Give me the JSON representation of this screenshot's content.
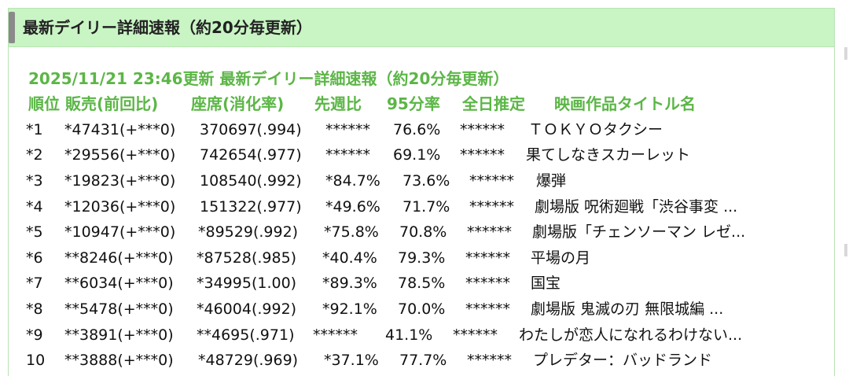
{
  "panel": {
    "title": "最新デイリー詳細速報（約20分毎更新）"
  },
  "report": {
    "title": "2025/11/21 23:46更新 最新デイリー詳細速報（約20分毎更新）"
  },
  "columns": {
    "rank_sales": "順位 販売(前回比)",
    "seats": "座席(消化率)",
    "last_week": "先週比",
    "pct95": "95分率",
    "full_day": "全日推定",
    "movie_title": "映画作品タイトル名"
  },
  "rows": [
    {
      "rank": "*1",
      "sales": "*47431(+***0)",
      "seats": "370697(.994)",
      "last_week": "******",
      "pct95": "76.6%",
      "full_day": "******",
      "title": "ＴＯＫＹＯタクシー"
    },
    {
      "rank": "*2",
      "sales": "*29556(+***0)",
      "seats": "742654(.977)",
      "last_week": "******",
      "pct95": "69.1%",
      "full_day": "******",
      "title": "果てしなきスカーレット"
    },
    {
      "rank": "*3",
      "sales": "*19823(+***0)",
      "seats": "108540(.992)",
      "last_week": "*84.7%",
      "pct95": "73.6%",
      "full_day": "******",
      "title": "爆弾"
    },
    {
      "rank": "*4",
      "sales": "*12036(+***0)",
      "seats": "151322(.977)",
      "last_week": "*49.6%",
      "pct95": "71.7%",
      "full_day": "******",
      "title": "劇場版 呪術廻戦「渋谷事変 ..."
    },
    {
      "rank": "*5",
      "sales": "*10947(+***0)",
      "seats": "*89529(.992)",
      "last_week": "*75.8%",
      "pct95": "70.8%",
      "full_day": "******",
      "title": "劇場版「チェンソーマン レゼ..."
    },
    {
      "rank": "*6",
      "sales": "**8246(+***0)",
      "seats": "*87528(.985)",
      "last_week": "*40.4%",
      "pct95": "79.3%",
      "full_day": "******",
      "title": "平場の月"
    },
    {
      "rank": "*7",
      "sales": "**6034(+***0)",
      "seats": "*34995(1.00)",
      "last_week": "*89.3%",
      "pct95": "78.5%",
      "full_day": "******",
      "title": "国宝"
    },
    {
      "rank": "*8",
      "sales": "**5478(+***0)",
      "seats": "*46004(.992)",
      "last_week": "*92.1%",
      "pct95": "70.0%",
      "full_day": "******",
      "title": "劇場版 鬼滅の刃 無限城編 ..."
    },
    {
      "rank": "*9",
      "sales": "**3891(+***0)",
      "seats": "**4695(.971)",
      "last_week": "******",
      "pct95": "41.1%",
      "full_day": "******",
      "title": "わたしが恋人になれるわけない..."
    },
    {
      "rank": "10",
      "sales": "**3888(+***0)",
      "seats": "*48729(.969)",
      "last_week": "*37.1%",
      "pct95": "77.7%",
      "full_day": "******",
      "title": "プレデター：バッドランド"
    }
  ],
  "colors": {
    "header_bg": "#c9f5c4",
    "accent_green": "#5bb646",
    "text": "#111111"
  }
}
